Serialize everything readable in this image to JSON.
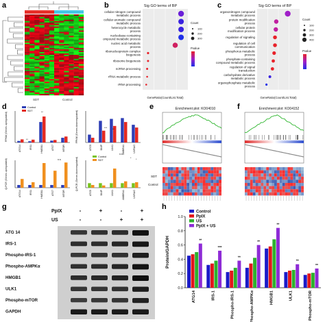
{
  "panels": {
    "a": {
      "label": "a",
      "groups": [
        "SDT",
        "Control"
      ],
      "group_colors": [
        "#e8312b",
        "#46c8e6"
      ]
    },
    "b": {
      "label": "b",
      "title": "Sig GO terms of BP",
      "xlabel": "GeneRatio(Count/List.Total)",
      "terms": [
        "cellular nitrogen compound metabolic process",
        "cellular aromatic compound metabolic process",
        "heterocycle metabolic process",
        "nucleobase-containing compound metabolic process",
        "nucleic acid metabolic process",
        "ribonucleoprotein complex biogenesis",
        "ribosome biogenesis",
        "ncRNA processing",
        "rRNA metabolic process",
        "rRNA processing"
      ],
      "legend_count_title": "Count",
      "count_values": [
        "100",
        "200",
        "300"
      ],
      "legend_p_title": "Pvalue"
    },
    "c": {
      "label": "c",
      "title": "Sig GO terms of BP",
      "xlabel": "GeneRatio(Count/List.Total)",
      "terms": [
        "organonitrogen compound metabolic process",
        "protein modification process",
        "cellular protein modification process",
        "regulation of signaling",
        "regulation of cell communication",
        "phosphorus metabolic process",
        "phosphate-containing compound metabolic process",
        "regulation of signal transduction",
        "carbohydrate derivative metabolic process",
        "organophosphate metabolic process"
      ],
      "legend_count_title": "Count",
      "count_values": [
        "100",
        "200",
        "300",
        "400"
      ],
      "legend_p_title": "Pvalue"
    },
    "d": {
      "label": "d",
      "legend": [
        "Control",
        "SDT"
      ],
      "colors": [
        "#2f3fb6",
        "#e42a22",
        "#79c31f",
        "#f0901f"
      ],
      "tl_ylabel": "FPKM (Genes upregulated)",
      "tl_genes": [
        "ATG14",
        "IRS1",
        "HMGB1",
        "ATG7",
        "MTOR"
      ],
      "tr_ylabel": "FPKM (Genes downregulated)",
      "tr_genes": [
        "ATG5",
        "BNIP",
        "ULK1",
        "AMBRA1",
        "UVRAG"
      ],
      "bl_ylabel": "Q-PCR (Genes upregulated)",
      "br_ylabel": "Q-PCR (Genes downregulated)",
      "sig_labels": [
        "**",
        "**",
        "***",
        "**",
        "n.s",
        "n.s",
        "*",
        "*"
      ]
    },
    "e": {
      "label": "e",
      "title": "Enrichment plot: KO04010",
      "lower_label": "SDT",
      "upper_label": "Control"
    },
    "f": {
      "label": "f",
      "title": "Enrichment plot: KO04152"
    },
    "g": {
      "label": "g",
      "treatments": [
        "PpIX",
        "US"
      ],
      "signs": [
        [
          "-",
          "+",
          "-",
          "+"
        ],
        [
          "-",
          "-",
          "+",
          "+"
        ]
      ],
      "rows": [
        "ATG 14",
        "IRS-1",
        "Phospho-IRS-1",
        "Phospho-AMPKα",
        "HMGB1",
        "ULK1",
        "Phospho-mTOR",
        "GAPDH"
      ]
    },
    "h": {
      "label": "h",
      "ylabel": "Protein/GAPDH",
      "legend": [
        "Control",
        "PpIX",
        "US",
        "PpIX + US"
      ],
      "colors": [
        "#1b1bc8",
        "#e3161b",
        "#2eb22e",
        "#8e2bd6"
      ],
      "categories": [
        "ATG14",
        "IRS-1",
        "Phospho-IRS-1",
        "Phospho-AMPKα",
        "HMGB1",
        "ULK1",
        "Phospho-mTOR"
      ],
      "ylim": [
        0,
        1.0
      ],
      "yticks": [
        "0.0",
        "0.2",
        "0.4",
        "0.6",
        "0.8",
        "1.0"
      ],
      "sig": [
        "**",
        "***",
        "**",
        "**",
        "**",
        "**",
        "**"
      ]
    }
  },
  "chart_data": [
    {
      "type": "bar",
      "title": "",
      "ylabel": "FPKM (Genes upregulated)",
      "categories": [
        "ATG14",
        "IRS1",
        "HMGB1",
        "ATG7",
        "MTOR"
      ],
      "series": [
        {
          "name": "Control",
          "values": [
            10,
            8,
            130,
            12,
            30
          ]
        },
        {
          "name": "SDT",
          "values": [
            20,
            18,
            165,
            16,
            38
          ]
        }
      ],
      "ylim": [
        0,
        200
      ]
    },
    {
      "type": "bar",
      "title": "",
      "ylabel": "FPKM (Genes downregulated)",
      "categories": [
        "ATG5",
        "BNIP",
        "ULK1",
        "AMBRA1",
        "UVRAG"
      ],
      "series": [
        {
          "name": "Control",
          "values": [
            20,
            55,
            60,
            62,
            45
          ]
        },
        {
          "name": "SDT",
          "values": [
            12,
            30,
            42,
            52,
            38
          ]
        }
      ],
      "ylim": [
        0,
        80
      ]
    },
    {
      "type": "bar",
      "title": "",
      "ylabel": "Q-PCR (Genes upregulated)",
      "categories": [
        "ATG14",
        "IRS1",
        "HMGB1",
        "ATG7",
        "MTOR"
      ],
      "series": [
        {
          "name": "Control",
          "values": [
            1.0,
            1.0,
            1.0,
            1.0,
            1.0
          ]
        },
        {
          "name": "SDT",
          "values": [
            3.2,
            2.0,
            9.0,
            6.2,
            9.2
          ]
        }
      ],
      "ylim": [
        0,
        10
      ]
    },
    {
      "type": "bar",
      "title": "",
      "ylabel": "Q-PCR (Genes downregulated)",
      "categories": [
        "ATG5",
        "BNIP",
        "ULK1",
        "AMBRA1",
        "UVRAG"
      ],
      "series": [
        {
          "name": "Control",
          "values": [
            1.0,
            1.0,
            1.0,
            1.0,
            1.0
          ]
        },
        {
          "name": "SDT",
          "values": [
            0.6,
            0.5,
            4.2,
            1.4,
            1.2
          ]
        }
      ],
      "ylim": [
        0,
        6
      ]
    },
    {
      "type": "bar",
      "title": "",
      "ylabel": "Protein/GAPDH",
      "categories": [
        "ATG14",
        "IRS-1",
        "Phospho-IRS-1",
        "Phospho-AMPKα",
        "HMGB1",
        "ULK1",
        "Phospho-mTOR"
      ],
      "series": [
        {
          "name": "Control",
          "values": [
            0.45,
            0.32,
            0.22,
            0.28,
            0.55,
            0.22,
            0.18
          ]
        },
        {
          "name": "PpIX",
          "values": [
            0.47,
            0.34,
            0.24,
            0.34,
            0.58,
            0.24,
            0.2
          ]
        },
        {
          "name": "US",
          "values": [
            0.5,
            0.38,
            0.28,
            0.42,
            0.68,
            0.25,
            0.21
          ]
        },
        {
          "name": "PpIX + US",
          "values": [
            0.62,
            0.52,
            0.38,
            0.6,
            0.84,
            0.33,
            0.27
          ]
        }
      ],
      "ylim": [
        0,
        1.0
      ]
    }
  ]
}
